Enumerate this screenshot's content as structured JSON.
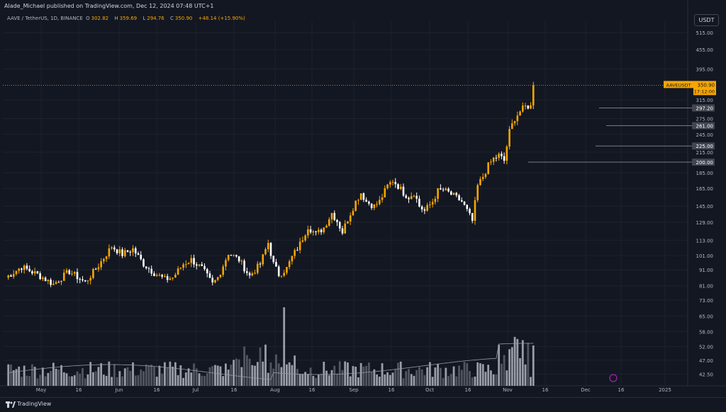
{
  "header": {
    "published": "Alade_Michael published on TradingView.com, Dec 12, 2024 07:48 UTC+1",
    "symbol_line": "AAVE / TetherUS, 1D, BINANCE",
    "open_label": "O",
    "open": "302.82",
    "high_label": "H",
    "high": "359.69",
    "low_label": "L",
    "low": "294.76",
    "close_label": "C",
    "close": "350.90",
    "change": "+48.14 (+15.90%)",
    "currency_button": "USDT"
  },
  "footer": {
    "brand": "TradingView"
  },
  "colors": {
    "background": "#131722",
    "bull": "#f7a600",
    "bear": "#ffffff",
    "grid": "#1e222d",
    "level": "#787b86"
  },
  "chart_data": {
    "type": "candlestick",
    "symbol": "AAVE / TetherUS",
    "interval": "1D",
    "exchange": "BINANCE",
    "y_scale": "log",
    "ylim": [
      39,
      560
    ],
    "y_ticks": [
      "515.00",
      "455.00",
      "395.00",
      "315.00",
      "297.20",
      "275.00",
      "261.00",
      "245.00",
      "225.00",
      "215.00",
      "200.00",
      "185.00",
      "165.00",
      "145.00",
      "129.00",
      "113.00",
      "101.00",
      "91.00",
      "81.00",
      "73.00",
      "65.00",
      "58.00",
      "52.00",
      "47.00",
      "42.50"
    ],
    "x_ticks": [
      "May",
      "16",
      "Jun",
      "16",
      "Jul",
      "16",
      "Aug",
      "16",
      "Sep",
      "16",
      "Oct",
      "16",
      "Nov",
      "16",
      "Dec",
      "16",
      "2025"
    ],
    "price_label": {
      "name": "AAVEUSDT",
      "value": "350.90",
      "countdown": "17:12:00"
    },
    "levels": [
      "297.20",
      "261.00",
      "225.00",
      "200.00"
    ],
    "trend": [
      [
        0,
        86
      ],
      [
        6,
        93
      ],
      [
        12,
        88
      ],
      [
        18,
        82
      ],
      [
        24,
        90
      ],
      [
        30,
        83
      ],
      [
        35,
        94
      ],
      [
        40,
        108
      ],
      [
        44,
        102
      ],
      [
        48,
        106
      ],
      [
        52,
        95
      ],
      [
        56,
        89
      ],
      [
        60,
        85
      ],
      [
        63,
        86
      ],
      [
        67,
        95
      ],
      [
        70,
        98
      ],
      [
        74,
        92
      ],
      [
        78,
        82
      ],
      [
        80,
        86
      ],
      [
        84,
        103
      ],
      [
        88,
        98
      ],
      [
        92,
        87
      ],
      [
        96,
        95
      ],
      [
        99,
        111
      ],
      [
        101,
        95
      ],
      [
        103,
        88
      ],
      [
        106,
        92
      ],
      [
        108,
        100
      ],
      [
        111,
        110
      ],
      [
        114,
        125
      ],
      [
        117,
        118
      ],
      [
        120,
        124
      ],
      [
        123,
        138
      ],
      [
        125,
        130
      ],
      [
        127,
        120
      ],
      [
        129,
        132
      ],
      [
        132,
        150
      ],
      [
        134,
        160
      ],
      [
        136,
        150
      ],
      [
        139,
        145
      ],
      [
        141,
        150
      ],
      [
        144,
        168
      ],
      [
        146,
        175
      ],
      [
        148,
        168
      ],
      [
        150,
        160
      ],
      [
        152,
        155
      ],
      [
        154,
        160
      ],
      [
        156,
        145
      ],
      [
        158,
        140
      ],
      [
        161,
        150
      ],
      [
        163,
        162
      ],
      [
        165,
        163
      ],
      [
        167,
        160
      ],
      [
        170,
        154
      ],
      [
        172,
        150
      ],
      [
        174,
        140
      ],
      [
        176,
        130
      ],
      [
        178,
        168
      ],
      [
        180,
        180
      ],
      [
        182,
        195
      ],
      [
        184,
        205
      ],
      [
        186,
        210
      ],
      [
        188,
        202
      ],
      [
        190,
        250
      ],
      [
        192,
        276
      ],
      [
        194,
        290
      ],
      [
        196,
        300
      ],
      [
        198,
        302
      ],
      [
        199,
        351
      ]
    ],
    "volume": "relative bars (white for down days, orange-white for up days)"
  }
}
